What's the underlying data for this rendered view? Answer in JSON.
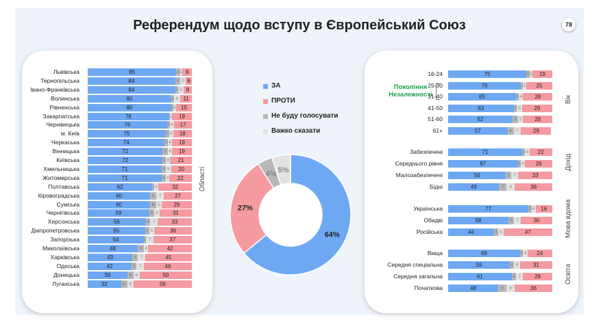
{
  "title": "Референдум щодо вступу в Європейський Союз",
  "page_number": "78",
  "colors": {
    "za": "#6ea8f2",
    "proty": "#f49aa0",
    "ne_budu": "#b7b7b7",
    "vazhko": "#e2e2e2"
  },
  "legend": [
    "ЗА",
    "ПРОТИ",
    "Не буду голосувати",
    "Важко сказати"
  ],
  "generation_label": "Покоління Незалежності",
  "chart_data": [
    {
      "type": "bar",
      "orientation": "horizontal",
      "stacked": true,
      "group_label": "Області",
      "series": [
        "ЗА",
        "Не буду голосувати",
        "Важко сказати",
        "ПРОТИ"
      ],
      "rows": [
        {
          "label": "Львівська",
          "za": 85,
          "ne_budu": 4,
          "vazhko": 2,
          "proty": 9
        },
        {
          "label": "Тернопільська",
          "za": 84,
          "ne_budu": 5,
          "vazhko": 5,
          "proty": 6
        },
        {
          "label": "Івано-Франківська",
          "za": 84,
          "ne_budu": 3,
          "vazhko": 5,
          "proty": 8
        },
        {
          "label": "Волинська",
          "za": 80,
          "ne_budu": 3,
          "vazhko": 6,
          "proty": 11
        },
        {
          "label": "Рівненська",
          "za": 80,
          "ne_budu": 2,
          "vazhko": 3,
          "proty": 15
        },
        {
          "label": "Закарпатська",
          "za": 78,
          "ne_budu": 1,
          "vazhko": 2,
          "proty": 19
        },
        {
          "label": "Чернівецька",
          "za": 76,
          "ne_budu": 3,
          "vazhko": 4,
          "proty": 17
        },
        {
          "label": "м. Київ",
          "za": 75,
          "ne_budu": 3,
          "vazhko": 4,
          "proty": 18
        },
        {
          "label": "Черкаська",
          "za": 74,
          "ne_budu": 3,
          "vazhko": 4,
          "proty": 19
        },
        {
          "label": "Вінницька",
          "za": 72,
          "ne_budu": 5,
          "vazhko": 4,
          "proty": 19
        },
        {
          "label": "Київська",
          "za": 72,
          "ne_budu": 3,
          "vazhko": 4,
          "proty": 21
        },
        {
          "label": "Хмельницька",
          "za": 71,
          "ne_budu": 4,
          "vazhko": 5,
          "proty": 20
        },
        {
          "label": "Житомирська",
          "za": 71,
          "ne_budu": 4,
          "vazhko": 3,
          "proty": 22
        },
        {
          "label": "Полтавська",
          "za": 62,
          "ne_budu": 2,
          "vazhko": 4,
          "proty": 32
        },
        {
          "label": "Кіровоградська",
          "za": 60,
          "ne_budu": 6,
          "vazhko": 7,
          "proty": 27
        },
        {
          "label": "Сумська",
          "za": 60,
          "ne_budu": 6,
          "vazhko": 5,
          "proty": 29
        },
        {
          "label": "Чернігівська",
          "za": 59,
          "ne_budu": 5,
          "vazhko": 5,
          "proty": 31
        },
        {
          "label": "Херсонська",
          "za": 56,
          "ne_budu": 4,
          "vazhko": 7,
          "proty": 33
        },
        {
          "label": "Дніпропетровська",
          "za": 55,
          "ne_budu": 4,
          "vazhko": 5,
          "proty": 36
        },
        {
          "label": "Запорізька",
          "za": 54,
          "ne_budu": 2,
          "vazhko": 7,
          "proty": 37
        },
        {
          "label": "Миколаївська",
          "za": 48,
          "ne_budu": 6,
          "vazhko": 4,
          "proty": 42
        },
        {
          "label": "Харківська",
          "za": 43,
          "ne_budu": 5,
          "vazhko": 7,
          "proty": 45
        },
        {
          "label": "Одеська",
          "za": 42,
          "ne_budu": 5,
          "vazhko": 7,
          "proty": 46
        },
        {
          "label": "Донецька",
          "za": 38,
          "ne_budu": 6,
          "vazhko": 6,
          "proty": 50
        },
        {
          "label": "Луганська",
          "za": 32,
          "ne_budu": 6,
          "vazhko": 6,
          "proty": 56
        }
      ]
    },
    {
      "type": "pie",
      "donut": true,
      "slices": [
        {
          "label": "ЗА",
          "value": 64
        },
        {
          "label": "ПРОТИ",
          "value": 27
        },
        {
          "label": "Не буду голосувати",
          "value": 4
        },
        {
          "label": "Важко сказати",
          "value": 5
        }
      ]
    },
    {
      "type": "bar",
      "orientation": "horizontal",
      "stacked": true,
      "groups": [
        {
          "label": "Вік",
          "rows": [
            {
              "label": "16-24",
              "za": 75,
              "ne_budu": 3,
              "vazhko": 3,
              "proty": 19
            },
            {
              "label": "25-30",
              "za": 70,
              "ne_budu": 2,
              "vazhko": 3,
              "proty": 25
            },
            {
              "label": "31-40",
              "za": 65,
              "ne_budu": 3,
              "vazhko": 4,
              "proty": 28
            },
            {
              "label": "41-50",
              "za": 63,
              "ne_budu": 3,
              "vazhko": 5,
              "proty": 29
            },
            {
              "label": "51-60",
              "za": 62,
              "ne_budu": 5,
              "vazhko": 5,
              "proty": 28
            },
            {
              "label": "61+",
              "za": 57,
              "ne_budu": 6,
              "vazhko": 7,
              "proty": 29
            }
          ]
        },
        {
          "label": "Дохід",
          "rows": [
            {
              "label": "Забезпечені",
              "za": 71,
              "ne_budu": 3,
              "vazhko": 4,
              "proty": 22
            },
            {
              "label": "Середнього рівня",
              "za": 67,
              "ne_budu": 3,
              "vazhko": 4,
              "proty": 26
            },
            {
              "label": "Малозабезпечені",
              "za": 56,
              "ne_budu": 5,
              "vazhko": 7,
              "proty": 33
            },
            {
              "label": "Бідні",
              "za": 49,
              "ne_budu": 7,
              "vazhko": 8,
              "proty": 36
            }
          ]
        },
        {
          "label": "Мова вдома",
          "rows": [
            {
              "label": "Українська",
              "za": 77,
              "ne_budu": 3,
              "vazhko": 4,
              "proty": 16
            },
            {
              "label": "Обидві",
              "za": 58,
              "ne_budu": 5,
              "vazhko": 7,
              "proty": 30
            },
            {
              "label": "Російська",
              "za": 44,
              "ne_budu": 4,
              "vazhko": 5,
              "proty": 47
            }
          ]
        },
        {
          "label": "Освіта",
          "rows": [
            {
              "label": "Вища",
              "za": 69,
              "ne_budu": 3,
              "vazhko": 4,
              "proty": 24
            },
            {
              "label": "Середня спеціальна",
              "za": 59,
              "ne_budu": 4,
              "vazhko": 6,
              "proty": 31
            },
            {
              "label": "Середня загальна",
              "za": 61,
              "ne_budu": 4,
              "vazhko": 7,
              "proty": 28
            },
            {
              "label": "Початкова",
              "za": 48,
              "ne_budu": 8,
              "vazhko": 8,
              "proty": 36
            }
          ]
        }
      ]
    }
  ]
}
